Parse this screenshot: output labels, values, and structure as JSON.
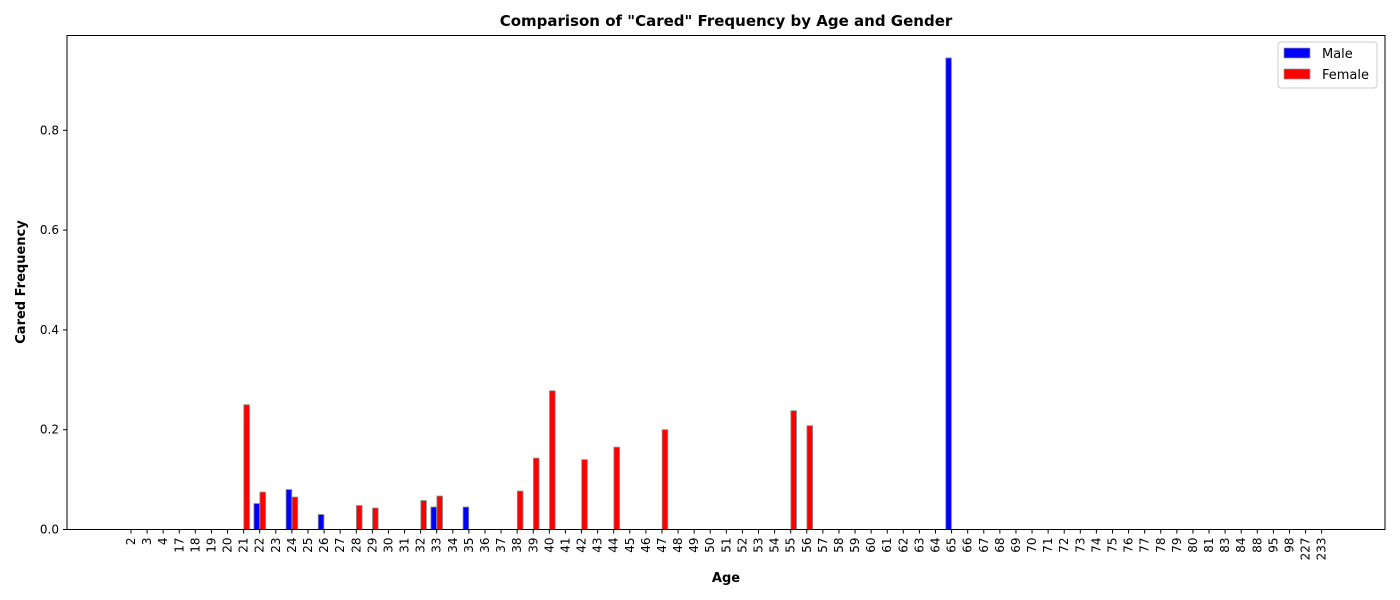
{
  "chart_data": {
    "type": "bar",
    "title": "Comparison of \"Cared\" Frequency by Age and Gender",
    "xlabel": "Age",
    "ylabel": "Cared Frequency",
    "ylim": [
      0,
      0.99
    ],
    "yticks": [
      0.0,
      0.2,
      0.4,
      0.6,
      0.8
    ],
    "ytick_labels": [
      "0.0",
      "0.2",
      "0.4",
      "0.6",
      "0.8"
    ],
    "grid": false,
    "legend_position": "top-right",
    "categories": [
      "2",
      "3",
      "4",
      "17",
      "18",
      "19",
      "20",
      "21",
      "22",
      "23",
      "24",
      "25",
      "26",
      "27",
      "28",
      "29",
      "30",
      "31",
      "32",
      "33",
      "34",
      "35",
      "36",
      "37",
      "38",
      "39",
      "40",
      "41",
      "42",
      "43",
      "44",
      "45",
      "46",
      "47",
      "48",
      "49",
      "50",
      "51",
      "52",
      "53",
      "54",
      "55",
      "56",
      "57",
      "58",
      "59",
      "60",
      "61",
      "62",
      "63",
      "64",
      "65",
      "66",
      "67",
      "68",
      "69",
      "70",
      "71",
      "72",
      "73",
      "74",
      "75",
      "76",
      "77",
      "78",
      "79",
      "80",
      "81",
      "83",
      "84",
      "88",
      "95",
      "98",
      "227",
      "233"
    ],
    "series": [
      {
        "name": "Male",
        "color": "#0000ff",
        "values": [
          0,
          0,
          0,
          0,
          0,
          0,
          0,
          0,
          0.052,
          0,
          0.08,
          0,
          0.03,
          0,
          0,
          0,
          0,
          0,
          0,
          0.045,
          0,
          0.045,
          0,
          0,
          0,
          0,
          0,
          0,
          0,
          0,
          0,
          0,
          0,
          0,
          0,
          0,
          0,
          0,
          0,
          0,
          0,
          0,
          0,
          0,
          0,
          0,
          0,
          0,
          0,
          0,
          0,
          0.945,
          0,
          0,
          0,
          0,
          0,
          0,
          0,
          0,
          0,
          0,
          0,
          0,
          0,
          0,
          0,
          0,
          0,
          0,
          0,
          0,
          0,
          0,
          0
        ]
      },
      {
        "name": "Female",
        "color": "#ff0000",
        "values": [
          0,
          0,
          0,
          0,
          0,
          0,
          0,
          0.25,
          0.075,
          0,
          0.065,
          0,
          0,
          0,
          0.048,
          0.043,
          0,
          0,
          0.058,
          0.067,
          0,
          0,
          0,
          0,
          0.077,
          0.143,
          0.278,
          0,
          0.14,
          0,
          0.165,
          0,
          0,
          0.2,
          0,
          0,
          0,
          0,
          0,
          0,
          0,
          0.238,
          0.208,
          0,
          0,
          0,
          0,
          0,
          0,
          0,
          0,
          0,
          0,
          0,
          0,
          0,
          0,
          0,
          0,
          0,
          0,
          0,
          0,
          0,
          0,
          0,
          0,
          0,
          0,
          0,
          0,
          0,
          0,
          0,
          0
        ]
      }
    ]
  }
}
